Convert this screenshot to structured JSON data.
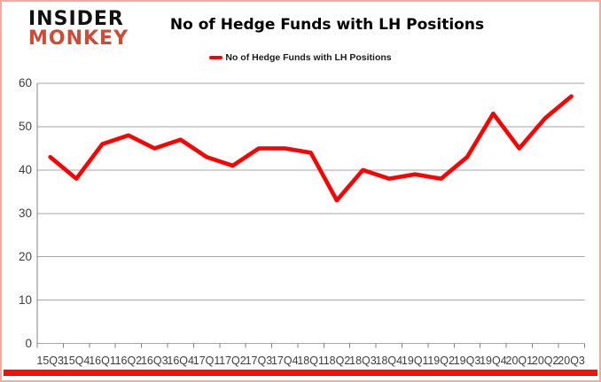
{
  "logo": {
    "line1": "INSIDER",
    "line2": "MONKEY"
  },
  "header": {
    "title": "No of Hedge Funds with LH Positions"
  },
  "legend": {
    "label": "No of Hedge Funds with LH Positions",
    "marker_color": "#fe0000"
  },
  "colors": {
    "line": "#fe0000",
    "grid": "#a6a6a6",
    "axis": "#808080",
    "tick_text": "#3d3d3d",
    "logo_red": "#d04a35",
    "frame_border": "#f3aba1",
    "bottom_bar": "#fa0f00"
  },
  "chart_data": {
    "type": "line",
    "title": "No of Hedge Funds with LH Positions",
    "categories": [
      "15Q3",
      "15Q4",
      "16Q1",
      "16Q2",
      "16Q3",
      "16Q4",
      "17Q1",
      "17Q2",
      "17Q3",
      "17Q4",
      "18Q1",
      "18Q2",
      "18Q3",
      "18Q4",
      "19Q1",
      "19Q2",
      "19Q3",
      "19Q4",
      "20Q1",
      "20Q2",
      "20Q3"
    ],
    "series": [
      {
        "name": "No of Hedge Funds with LH Positions",
        "color": "#fe0000",
        "values": [
          43,
          38,
          46,
          48,
          45,
          47,
          43,
          41,
          45,
          45,
          44,
          33,
          40,
          38,
          39,
          38,
          43,
          53,
          45,
          52,
          57
        ]
      }
    ],
    "ylim": [
      0,
      60
    ],
    "yticks": [
      0,
      10,
      20,
      30,
      40,
      50,
      60
    ],
    "grid": "horizontal",
    "legend_position": "top-center"
  }
}
